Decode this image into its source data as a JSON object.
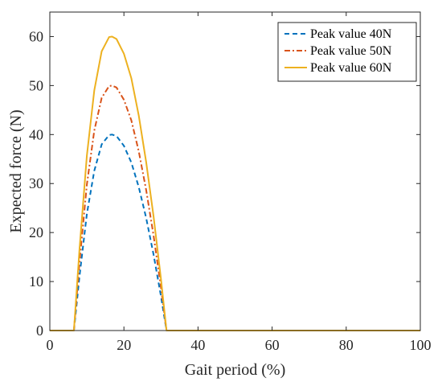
{
  "chart_data": {
    "type": "line",
    "xlabel": "Gait period (%)",
    "ylabel": "Expected force (N)",
    "xlim": [
      0,
      100
    ],
    "ylim": [
      0,
      65
    ],
    "xticks": [
      0,
      20,
      40,
      60,
      80,
      100
    ],
    "yticks": [
      0,
      10,
      20,
      30,
      40,
      50,
      60
    ],
    "grid": false,
    "legend_position": "top-right",
    "series": [
      {
        "name": "Peak value  40N",
        "color": "#0072BD",
        "line_style": "dashed",
        "x": [
          0,
          6.5,
          8,
          10,
          12,
          14,
          16,
          16.8,
          18,
          20,
          22,
          24,
          26,
          28,
          30,
          31.5,
          32,
          100
        ],
        "y": [
          0,
          0,
          11.0,
          23.8,
          32.6,
          38.0,
          39.9,
          40.0,
          39.7,
          37.7,
          34.3,
          29.3,
          23.0,
          15.5,
          7.0,
          0,
          0,
          0
        ]
      },
      {
        "name": "Peak value  50N",
        "color": "#D95319",
        "line_style": "dash-dot",
        "x": [
          0,
          6.5,
          8,
          10,
          12,
          14,
          16,
          16.8,
          18,
          20,
          22,
          24,
          26,
          28,
          30,
          31.5,
          32,
          100
        ],
        "y": [
          0,
          0,
          13.8,
          29.8,
          40.8,
          47.5,
          49.9,
          50.0,
          49.6,
          47.1,
          42.9,
          36.6,
          28.7,
          19.4,
          8.8,
          0,
          0,
          0
        ]
      },
      {
        "name": "Peak value  60N",
        "color": "#EDB120",
        "line_style": "solid",
        "x": [
          0,
          6.5,
          8,
          10,
          12,
          14,
          16,
          16.8,
          18,
          20,
          22,
          24,
          26,
          28,
          30,
          31.5,
          32,
          100
        ],
        "y": [
          0,
          0,
          16.5,
          35.7,
          49.0,
          57.0,
          59.9,
          60.0,
          59.5,
          56.5,
          51.5,
          43.9,
          34.4,
          23.3,
          10.5,
          0,
          0,
          0
        ]
      }
    ]
  }
}
